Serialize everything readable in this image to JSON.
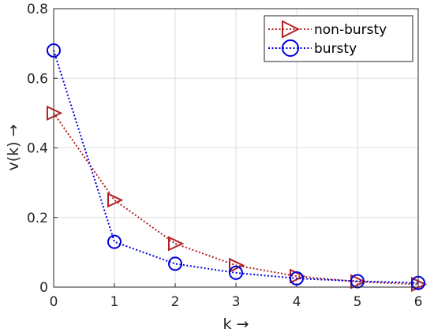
{
  "chart_data": {
    "type": "line",
    "title": "",
    "xlabel": "k →",
    "ylabel": "v(k) →",
    "xlim": [
      0,
      6
    ],
    "ylim": [
      0,
      0.8
    ],
    "x_ticks": [
      "0",
      "1",
      "2",
      "3",
      "4",
      "5",
      "6"
    ],
    "y_ticks": [
      "0",
      "0.2",
      "0.4",
      "0.6",
      "0.8"
    ],
    "grid": true,
    "legend_position": "top-right",
    "x": [
      0,
      1,
      2,
      3,
      4,
      5,
      6
    ],
    "series": [
      {
        "name": "non-bursty",
        "values": [
          0.5,
          0.25,
          0.125,
          0.0625,
          0.03125,
          0.015625,
          0.0078
        ],
        "color": "#b22222",
        "marker": "triangle-right",
        "line_style": "dotted"
      },
      {
        "name": "bursty",
        "values": [
          0.68,
          0.13,
          0.067,
          0.041,
          0.025,
          0.017,
          0.012
        ],
        "color": "#0000e0",
        "marker": "circle",
        "line_style": "dotted"
      }
    ]
  }
}
